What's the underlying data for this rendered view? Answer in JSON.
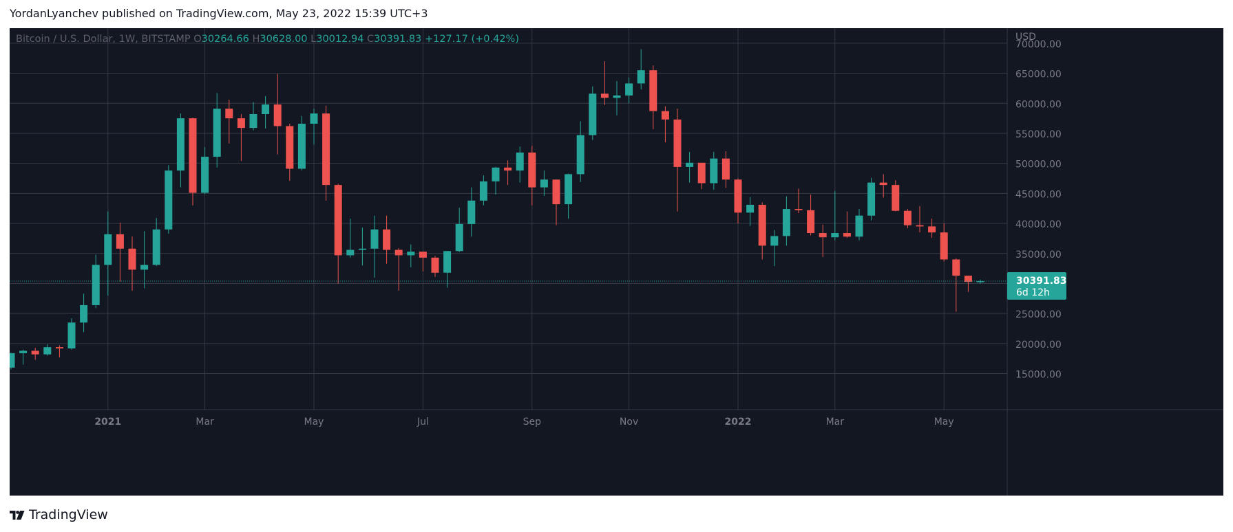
{
  "header": {
    "publisher_line": "YordanLyanchev published on TradingView.com, May 23, 2022 15:39 UTC+3"
  },
  "footer": {
    "brand": "TradingView",
    "logo_icon": "tradingview-logo-icon"
  },
  "colors": {
    "background": "#131722",
    "grid": "#363a45",
    "up": "#26a69a",
    "down": "#ef5350",
    "text": "#787b86",
    "price_tag": "#26a69a"
  },
  "chart_data": {
    "type": "candlestick",
    "legend": {
      "symbol": "Bitcoin / U.S. Dollar, 1W, BITSTAMP",
      "o_label": "O",
      "o_value": "30264.66",
      "h_label": "H",
      "h_value": "30628.00",
      "l_label": "L",
      "l_value": "30012.94",
      "c_label": "C",
      "c_value": "30391.83",
      "change": "+127.17 (+0.42%)"
    },
    "currency": "USD",
    "y_ticks": [
      "15000.00",
      "20000.00",
      "25000.00",
      "30000.00",
      "35000.00",
      "40000.00",
      "45000.00",
      "50000.00",
      "55000.00",
      "60000.00",
      "65000.00",
      "70000.00"
    ],
    "ylim": [
      9000,
      72500
    ],
    "x_ticks": [
      {
        "label": "2021",
        "date": "2021-01-04",
        "bold": true
      },
      {
        "label": "Mar",
        "date": "2021-03-01",
        "bold": false
      },
      {
        "label": "May",
        "date": "2021-05-03",
        "bold": false
      },
      {
        "label": "Jul",
        "date": "2021-07-05",
        "bold": false
      },
      {
        "label": "Sep",
        "date": "2021-09-06",
        "bold": false
      },
      {
        "label": "Nov",
        "date": "2021-11-01",
        "bold": false
      },
      {
        "label": "2022",
        "date": "2022-01-03",
        "bold": true
      },
      {
        "label": "Mar",
        "date": "2022-02-28",
        "bold": false
      },
      {
        "label": "May",
        "date": "2022-05-02",
        "bold": false
      }
    ],
    "last_price_tag": {
      "price": "30391.83",
      "countdown": "6d 12h",
      "value": 30391.83
    },
    "candles": [
      {
        "date": "2020-11-09",
        "o": 16000,
        "h": 18500,
        "l": 15700,
        "c": 18400
      },
      {
        "date": "2020-11-16",
        "o": 18400,
        "h": 19000,
        "l": 16500,
        "c": 18800
      },
      {
        "date": "2020-11-23",
        "o": 18800,
        "h": 19300,
        "l": 17300,
        "c": 18200
      },
      {
        "date": "2020-11-30",
        "o": 18200,
        "h": 19900,
        "l": 18000,
        "c": 19400
      },
      {
        "date": "2020-12-07",
        "o": 19400,
        "h": 19700,
        "l": 17700,
        "c": 19200
      },
      {
        "date": "2020-12-14",
        "o": 19200,
        "h": 24200,
        "l": 19000,
        "c": 23500
      },
      {
        "date": "2020-12-21",
        "o": 23500,
        "h": 28300,
        "l": 21900,
        "c": 26400
      },
      {
        "date": "2020-12-28",
        "o": 26400,
        "h": 34800,
        "l": 25900,
        "c": 33100
      },
      {
        "date": "2021-01-04",
        "o": 33100,
        "h": 42000,
        "l": 28000,
        "c": 38200
      },
      {
        "date": "2021-01-11",
        "o": 38200,
        "h": 40100,
        "l": 30300,
        "c": 35800
      },
      {
        "date": "2021-01-18",
        "o": 35800,
        "h": 37800,
        "l": 28800,
        "c": 32300
      },
      {
        "date": "2021-01-25",
        "o": 32300,
        "h": 38700,
        "l": 29200,
        "c": 33100
      },
      {
        "date": "2021-02-01",
        "o": 33100,
        "h": 40900,
        "l": 32900,
        "c": 39000
      },
      {
        "date": "2021-02-08",
        "o": 39000,
        "h": 49700,
        "l": 38300,
        "c": 48800
      },
      {
        "date": "2021-02-15",
        "o": 48800,
        "h": 58300,
        "l": 46000,
        "c": 57500
      },
      {
        "date": "2021-02-22",
        "o": 57500,
        "h": 57600,
        "l": 43000,
        "c": 45100
      },
      {
        "date": "2021-03-01",
        "o": 45100,
        "h": 52700,
        "l": 44900,
        "c": 51100
      },
      {
        "date": "2021-03-08",
        "o": 51100,
        "h": 61700,
        "l": 49300,
        "c": 59100
      },
      {
        "date": "2021-03-15",
        "o": 59100,
        "h": 60600,
        "l": 53300,
        "c": 57500
      },
      {
        "date": "2021-03-22",
        "o": 57500,
        "h": 58200,
        "l": 50400,
        "c": 55900
      },
      {
        "date": "2021-03-29",
        "o": 55900,
        "h": 60200,
        "l": 55500,
        "c": 58200
      },
      {
        "date": "2021-04-05",
        "o": 58200,
        "h": 61200,
        "l": 55800,
        "c": 59800
      },
      {
        "date": "2021-04-12",
        "o": 59800,
        "h": 64900,
        "l": 51500,
        "c": 56200
      },
      {
        "date": "2021-04-19",
        "o": 56200,
        "h": 56600,
        "l": 47100,
        "c": 49100
      },
      {
        "date": "2021-04-26",
        "o": 49100,
        "h": 57900,
        "l": 48800,
        "c": 56600
      },
      {
        "date": "2021-05-03",
        "o": 56600,
        "h": 59100,
        "l": 53100,
        "c": 58300
      },
      {
        "date": "2021-05-10",
        "o": 58300,
        "h": 59600,
        "l": 43800,
        "c": 46400
      },
      {
        "date": "2021-05-17",
        "o": 46400,
        "h": 46600,
        "l": 30000,
        "c": 34700
      },
      {
        "date": "2021-05-24",
        "o": 34700,
        "h": 40800,
        "l": 34300,
        "c": 35600
      },
      {
        "date": "2021-05-31",
        "o": 35600,
        "h": 39300,
        "l": 33000,
        "c": 35800
      },
      {
        "date": "2021-06-07",
        "o": 35800,
        "h": 41300,
        "l": 31000,
        "c": 39000
      },
      {
        "date": "2021-06-14",
        "o": 39000,
        "h": 41300,
        "l": 33300,
        "c": 35600
      },
      {
        "date": "2021-06-21",
        "o": 35600,
        "h": 35900,
        "l": 28800,
        "c": 34700
      },
      {
        "date": "2021-06-28",
        "o": 34700,
        "h": 36500,
        "l": 32700,
        "c": 35300
      },
      {
        "date": "2021-07-05",
        "o": 35300,
        "h": 35300,
        "l": 32000,
        "c": 34300
      },
      {
        "date": "2021-07-12",
        "o": 34300,
        "h": 34600,
        "l": 31100,
        "c": 31800
      },
      {
        "date": "2021-07-19",
        "o": 31800,
        "h": 35400,
        "l": 29300,
        "c": 35400
      },
      {
        "date": "2021-07-26",
        "o": 35400,
        "h": 42600,
        "l": 35200,
        "c": 39900
      },
      {
        "date": "2021-08-02",
        "o": 39900,
        "h": 46000,
        "l": 37800,
        "c": 43800
      },
      {
        "date": "2021-08-09",
        "o": 43800,
        "h": 48000,
        "l": 43000,
        "c": 47000
      },
      {
        "date": "2021-08-16",
        "o": 47000,
        "h": 49400,
        "l": 44800,
        "c": 49300
      },
      {
        "date": "2021-08-23",
        "o": 49300,
        "h": 50500,
        "l": 46400,
        "c": 48800
      },
      {
        "date": "2021-08-30",
        "o": 48800,
        "h": 52800,
        "l": 46800,
        "c": 51800
      },
      {
        "date": "2021-09-06",
        "o": 51800,
        "h": 52900,
        "l": 43000,
        "c": 46000
      },
      {
        "date": "2021-09-13",
        "o": 46000,
        "h": 48800,
        "l": 44600,
        "c": 47300
      },
      {
        "date": "2021-09-20",
        "o": 47300,
        "h": 47300,
        "l": 39700,
        "c": 43200
      },
      {
        "date": "2021-09-27",
        "o": 43200,
        "h": 48300,
        "l": 40800,
        "c": 48200
      },
      {
        "date": "2021-10-04",
        "o": 48200,
        "h": 57000,
        "l": 46900,
        "c": 54700
      },
      {
        "date": "2021-10-11",
        "o": 54700,
        "h": 62800,
        "l": 53900,
        "c": 61600
      },
      {
        "date": "2021-10-18",
        "o": 61600,
        "h": 67000,
        "l": 59700,
        "c": 60900
      },
      {
        "date": "2021-10-25",
        "o": 60900,
        "h": 63700,
        "l": 58000,
        "c": 61300
      },
      {
        "date": "2021-11-01",
        "o": 61300,
        "h": 64300,
        "l": 60000,
        "c": 63300
      },
      {
        "date": "2021-11-08",
        "o": 63300,
        "h": 69000,
        "l": 62300,
        "c": 65500
      },
      {
        "date": "2021-11-15",
        "o": 65500,
        "h": 66300,
        "l": 55700,
        "c": 58700
      },
      {
        "date": "2021-11-22",
        "o": 58700,
        "h": 59500,
        "l": 53500,
        "c": 57300
      },
      {
        "date": "2021-11-29",
        "o": 57300,
        "h": 59100,
        "l": 42000,
        "c": 49400
      },
      {
        "date": "2021-12-06",
        "o": 49400,
        "h": 51900,
        "l": 46800,
        "c": 50100
      },
      {
        "date": "2021-12-13",
        "o": 50100,
        "h": 50100,
        "l": 45700,
        "c": 46700
      },
      {
        "date": "2021-12-20",
        "o": 46700,
        "h": 51900,
        "l": 45600,
        "c": 50800
      },
      {
        "date": "2021-12-27",
        "o": 50800,
        "h": 52000,
        "l": 45900,
        "c": 47300
      },
      {
        "date": "2022-01-03",
        "o": 47300,
        "h": 47500,
        "l": 40000,
        "c": 41800
      },
      {
        "date": "2022-01-10",
        "o": 41800,
        "h": 44400,
        "l": 39600,
        "c": 43100
      },
      {
        "date": "2022-01-17",
        "o": 43100,
        "h": 43500,
        "l": 34000,
        "c": 36300
      },
      {
        "date": "2022-01-24",
        "o": 36300,
        "h": 38900,
        "l": 32900,
        "c": 37900
      },
      {
        "date": "2022-01-31",
        "o": 37900,
        "h": 44500,
        "l": 36300,
        "c": 42400
      },
      {
        "date": "2022-02-07",
        "o": 42400,
        "h": 45800,
        "l": 41700,
        "c": 42200
      },
      {
        "date": "2022-02-14",
        "o": 42200,
        "h": 44800,
        "l": 38000,
        "c": 38400
      },
      {
        "date": "2022-02-21",
        "o": 38400,
        "h": 39800,
        "l": 34400,
        "c": 37700
      },
      {
        "date": "2022-02-28",
        "o": 37700,
        "h": 45400,
        "l": 37200,
        "c": 38400
      },
      {
        "date": "2022-03-07",
        "o": 38400,
        "h": 42000,
        "l": 37600,
        "c": 37800
      },
      {
        "date": "2022-03-14",
        "o": 37800,
        "h": 42400,
        "l": 37200,
        "c": 41300
      },
      {
        "date": "2022-03-21",
        "o": 41300,
        "h": 47600,
        "l": 40500,
        "c": 46800
      },
      {
        "date": "2022-03-28",
        "o": 46800,
        "h": 48200,
        "l": 44300,
        "c": 46400
      },
      {
        "date": "2022-04-04",
        "o": 46400,
        "h": 47200,
        "l": 42000,
        "c": 42100
      },
      {
        "date": "2022-04-11",
        "o": 42100,
        "h": 42400,
        "l": 39200,
        "c": 39700
      },
      {
        "date": "2022-04-18",
        "o": 39700,
        "h": 42900,
        "l": 38500,
        "c": 39500
      },
      {
        "date": "2022-04-25",
        "o": 39500,
        "h": 40800,
        "l": 37600,
        "c": 38500
      },
      {
        "date": "2022-05-02",
        "o": 38500,
        "h": 40000,
        "l": 33700,
        "c": 34000
      },
      {
        "date": "2022-05-09",
        "o": 34000,
        "h": 34200,
        "l": 25300,
        "c": 31300
      },
      {
        "date": "2022-05-16",
        "o": 31300,
        "h": 31300,
        "l": 28600,
        "c": 30264.66
      },
      {
        "date": "2022-05-23",
        "o": 30264.66,
        "h": 30628.0,
        "l": 30012.94,
        "c": 30391.83
      }
    ]
  }
}
